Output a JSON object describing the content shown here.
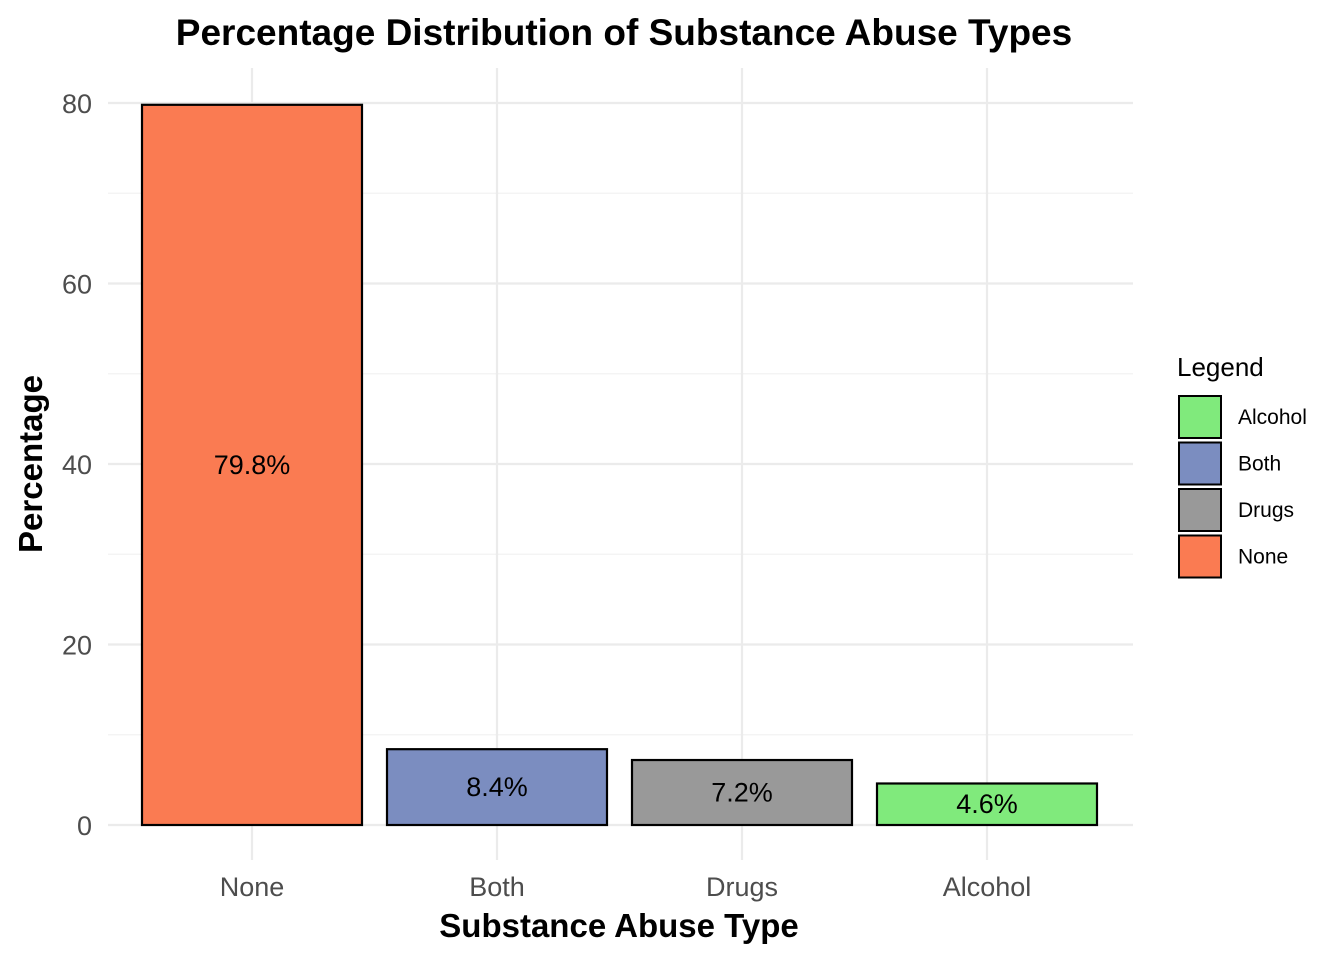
{
  "chart_data": {
    "type": "bar",
    "title": "Percentage Distribution of Substance Abuse Types",
    "xlabel": "Substance Abuse Type",
    "ylabel": "Percentage",
    "categories": [
      "None",
      "Both",
      "Drugs",
      "Alcohol"
    ],
    "values": [
      79.8,
      8.4,
      7.2,
      4.6
    ],
    "data_labels": [
      "79.8%",
      "8.4%",
      "7.2%",
      "4.6%"
    ],
    "bar_colors": [
      "#fa7b52",
      "#7b8dc0",
      "#999999",
      "#80ea7c"
    ],
    "y_ticks": [
      0,
      20,
      40,
      60,
      80
    ],
    "y_tick_labels": [
      "0",
      "20",
      "40",
      "60",
      "80"
    ],
    "ylim": [
      0,
      83.8
    ],
    "grid": true,
    "legend": {
      "title": "Legend",
      "placement": "right",
      "items": [
        {
          "label": "Alcohol",
          "color": "#80ea7c"
        },
        {
          "label": "Both",
          "color": "#7b8dc0"
        },
        {
          "label": "Drugs",
          "color": "#999999"
        },
        {
          "label": "None",
          "color": "#fa7b52"
        }
      ]
    }
  }
}
